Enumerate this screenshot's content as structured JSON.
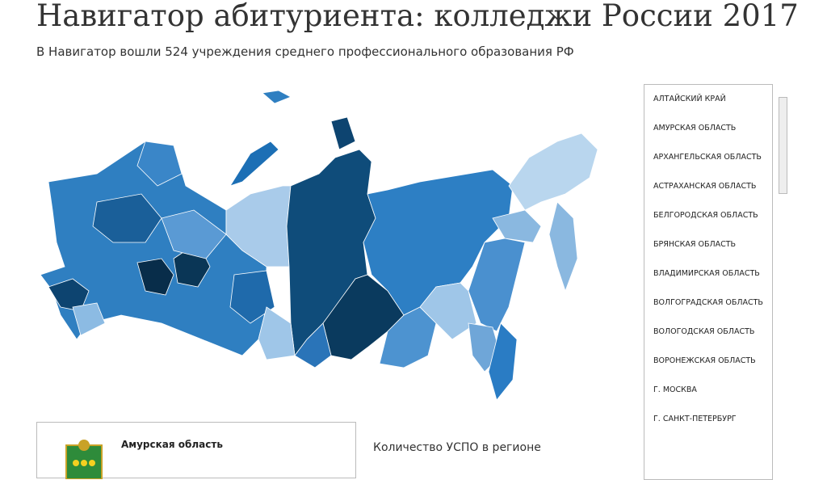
{
  "header": {
    "title": "Навигатор абитуриента: колледжи России 2017",
    "subtitle": "В Навигатор вошли 524 учреждения среднего профессионального образования РФ"
  },
  "region_list": {
    "items": [
      "АЛТАЙСКИЙ КРАЙ",
      "АМУРСКАЯ ОБЛАСТЬ",
      "АРХАНГЕЛЬСКАЯ ОБЛАСТЬ",
      "АСТРАХАНСКАЯ ОБЛАСТЬ",
      "БЕЛГОРОДСКАЯ ОБЛАСТЬ",
      "БРЯНСКАЯ ОБЛАСТЬ",
      "ВЛАДИМИРСКАЯ ОБЛАСТЬ",
      "ВОЛГОГРАДСКАЯ ОБЛАСТЬ",
      "ВОЛОГОДСКАЯ ОБЛАСТЬ",
      "ВОРОНЕЖСКАЯ ОБЛАСТЬ",
      "Г. МОСКВА",
      "Г. САНКТ-ПЕТЕРБУРГ"
    ]
  },
  "region_card": {
    "name": "Амурская область"
  },
  "stats": {
    "label": "Количество УСПО в регионе"
  }
}
